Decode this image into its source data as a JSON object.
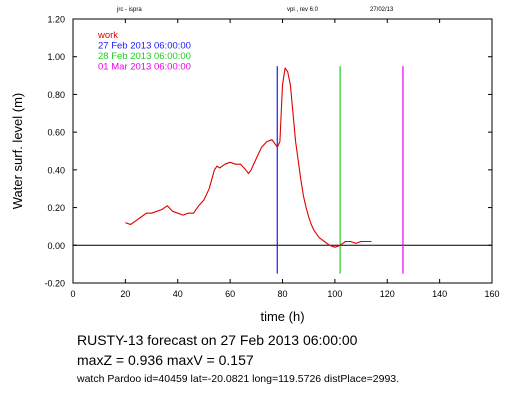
{
  "header": {
    "left": "jrc - ispra",
    "center": "vpl , rev 6.0",
    "right": "27/02/13"
  },
  "chart_data": {
    "type": "line",
    "xlabel": "time (h)",
    "ylabel": "Water surf. level (m)",
    "xlim": [
      0,
      160
    ],
    "ylim": [
      -0.2,
      1.2
    ],
    "x_ticks": [
      0,
      20,
      40,
      60,
      80,
      100,
      120,
      140,
      160
    ],
    "y_ticks": [
      -0.2,
      0.0,
      0.2,
      0.4,
      0.6,
      0.8,
      1.0,
      1.2
    ],
    "x_tick_labels": [
      "0",
      "20",
      "40",
      "60",
      "80",
      "100",
      "120",
      "140",
      "160"
    ],
    "y_tick_labels": [
      "-0.20",
      "0.00",
      "0.20",
      "0.40",
      "0.60",
      "0.80",
      "1.00",
      "1.20"
    ],
    "grid": false,
    "zero_line": true,
    "legend": {
      "placement": "top-left",
      "entries": [
        {
          "label": "work",
          "color": "#e00000"
        },
        {
          "label": "27 Feb 2013 06:00:00",
          "color": "#1a1aff"
        },
        {
          "label": "28 Feb 2013 06:00:00",
          "color": "#22cc22"
        },
        {
          "label": "01 Mar 2013 06:00:00",
          "color": "#ee00ee"
        }
      ]
    },
    "series": [
      {
        "name": "work",
        "color": "#e00000",
        "x": [
          20,
          22,
          24,
          26,
          28,
          30,
          32,
          34,
          36,
          38,
          40,
          42,
          44,
          46,
          48,
          50,
          52,
          53,
          54,
          55,
          56,
          57,
          58,
          60,
          62,
          64,
          66,
          67,
          68,
          70,
          72,
          74,
          76,
          78,
          79,
          80,
          81,
          82,
          83,
          84,
          85,
          86,
          87,
          88,
          89,
          90,
          91,
          92,
          94,
          96,
          98,
          100,
          102,
          104,
          106,
          108,
          110,
          112,
          114
        ],
        "y": [
          0.12,
          0.11,
          0.13,
          0.15,
          0.17,
          0.17,
          0.18,
          0.19,
          0.21,
          0.18,
          0.17,
          0.16,
          0.17,
          0.17,
          0.21,
          0.24,
          0.3,
          0.35,
          0.4,
          0.42,
          0.41,
          0.42,
          0.43,
          0.44,
          0.43,
          0.43,
          0.4,
          0.38,
          0.4,
          0.46,
          0.52,
          0.55,
          0.56,
          0.52,
          0.55,
          0.85,
          0.94,
          0.92,
          0.85,
          0.7,
          0.55,
          0.45,
          0.35,
          0.26,
          0.2,
          0.15,
          0.11,
          0.08,
          0.04,
          0.02,
          0.0,
          -0.01,
          0.0,
          0.02,
          0.02,
          0.01,
          0.02,
          0.02,
          0.02
        ]
      }
    ],
    "vertical_markers": [
      {
        "label": "27 Feb 2013 06:00:00",
        "x": 78,
        "y_range": [
          -0.15,
          0.95
        ],
        "color": "#1a1aff"
      },
      {
        "label": "28 Feb 2013 06:00:00",
        "x": 102,
        "y_range": [
          -0.15,
          0.95
        ],
        "color": "#22cc22"
      },
      {
        "label": "01 Mar 2013 06:00:00",
        "x": 126,
        "y_range": [
          -0.15,
          0.95
        ],
        "color": "#ee00ee"
      }
    ]
  },
  "captions": {
    "forecast": "RUSTY-13  forecast on 27 Feb 2013 06:00:00",
    "max": "maxZ = 0.936 maxV = 0.157",
    "watch": "watch Pardoo id=40459 lat=-20.0821 long=119.5726 distPlace=2993."
  }
}
